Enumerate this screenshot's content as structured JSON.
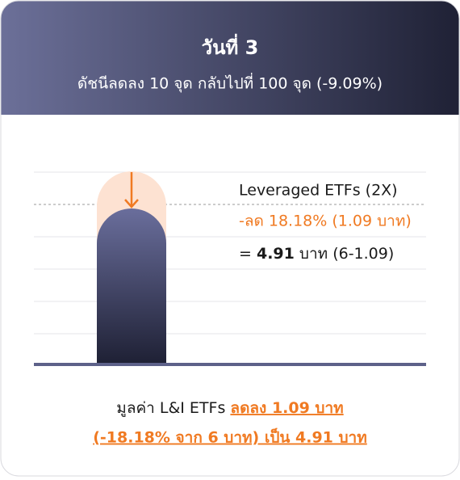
{
  "header": {
    "title": "วันที่ 3",
    "subtitle": "ดัชนีลดลง 10 จุด กลับไปที่ 100 จุด (-9.09%)"
  },
  "panel": {
    "label": "Leveraged ETFs (2X)",
    "change": "-ลด 18.18% (1.09 บาท)",
    "result": {
      "prefix": "=",
      "value": "4.91",
      "suffix": "บาท (6-1.09)"
    }
  },
  "footer": {
    "prefix": "มูลค่า L&I ETFs",
    "highlight_1": "ลดลง 1.09 บาท",
    "highlight_2": "(-18.18% จาก 6 บาท) เป็น 4.91 บาท"
  }
}
